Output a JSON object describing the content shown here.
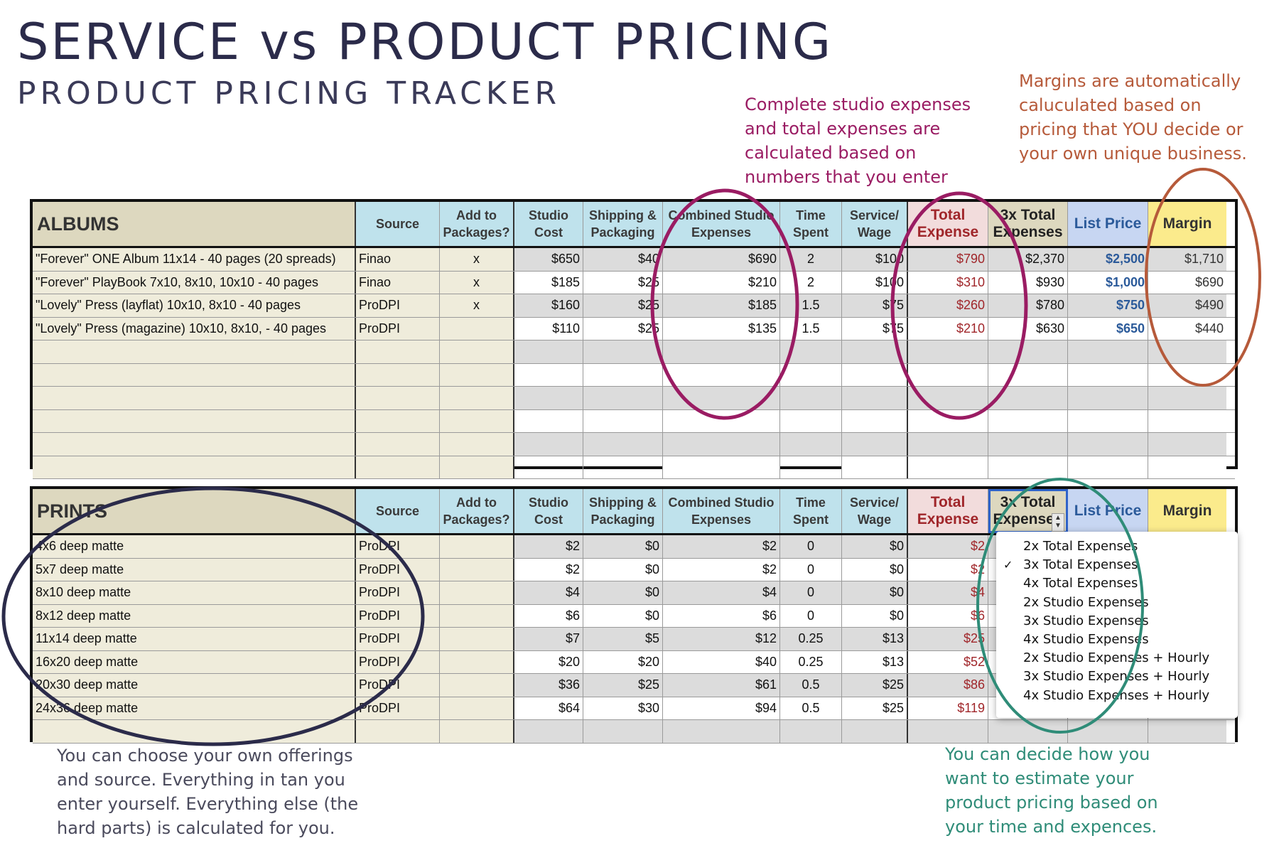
{
  "title": "SERVICE vs PRODUCT PRICING",
  "subtitle": "PRODUCT PRICING TRACKER",
  "notes": {
    "studio": [
      "Complete studio expenses",
      "and total expenses are",
      "calculated based on",
      "numbers that you enter"
    ],
    "margin": [
      "Margins are automatically",
      "caluculated based on",
      "pricing that YOU decide or",
      "your own unique business."
    ],
    "tan": [
      "You can choose your own offerings",
      "and source. Everything in tan you",
      "enter yourself. Everything else (the",
      "hard parts) is calculated for you."
    ],
    "estimate": [
      "You can decide how you",
      "want to estimate your",
      "product pricing based on",
      "your time and expences."
    ]
  },
  "headers": {
    "source": "Source",
    "add": "Add to Packages?",
    "studio": "Studio Cost",
    "shipping": "Shipping & Packaging",
    "combined": "Combined Studio Expenses",
    "time": "Time Spent",
    "wage": "Service/ Wage",
    "total": "Total Expense",
    "three_x": "3x Total Expenses",
    "list": "List Price",
    "margin": "Margin"
  },
  "albums": {
    "title": "ALBUMS",
    "rows": [
      {
        "item": "\"Forever\" ONE Album 11x14 - 40 pages (20 spreads)",
        "source": "Finao",
        "add": "x",
        "studio": "$650",
        "shipping": "$40",
        "combined": "$690",
        "time": "2",
        "wage": "$100",
        "total": "$790",
        "three_x": "$2,370",
        "list": "$2,500",
        "margin": "$1,710"
      },
      {
        "item": "\"Forever\" PlayBook 7x10, 8x10, 10x10 - 40 pages",
        "source": "Finao",
        "add": "x",
        "studio": "$185",
        "shipping": "$25",
        "combined": "$210",
        "time": "2",
        "wage": "$100",
        "total": "$310",
        "three_x": "$930",
        "list": "$1,000",
        "margin": "$690"
      },
      {
        "item": "\"Lovely\" Press (layflat) 10x10, 8x10 - 40 pages",
        "source": "ProDPI",
        "add": "x",
        "studio": "$160",
        "shipping": "$25",
        "combined": "$185",
        "time": "1.5",
        "wage": "$75",
        "total": "$260",
        "three_x": "$780",
        "list": "$750",
        "margin": "$490"
      },
      {
        "item": "\"Lovely\" Press (magazine) 10x10, 8x10, - 40 pages",
        "source": "ProDPI",
        "add": "",
        "studio": "$110",
        "shipping": "$25",
        "combined": "$135",
        "time": "1.5",
        "wage": "$75",
        "total": "$210",
        "three_x": "$630",
        "list": "$650",
        "margin": "$440"
      }
    ]
  },
  "prints": {
    "title": "PRINTS",
    "rows": [
      {
        "item": "4x6 deep matte",
        "source": "ProDPI",
        "studio": "$2",
        "shipping": "$0",
        "combined": "$2",
        "time": "0",
        "wage": "$0",
        "total": "$2"
      },
      {
        "item": "5x7 deep matte",
        "source": "ProDPI",
        "studio": "$2",
        "shipping": "$0",
        "combined": "$2",
        "time": "0",
        "wage": "$0",
        "total": "$2"
      },
      {
        "item": "8x10  deep matte",
        "source": "ProDPI",
        "studio": "$4",
        "shipping": "$0",
        "combined": "$4",
        "time": "0",
        "wage": "$0",
        "total": "$4"
      },
      {
        "item": "8x12 deep matte",
        "source": "ProDPI",
        "studio": "$6",
        "shipping": "$0",
        "combined": "$6",
        "time": "0",
        "wage": "$0",
        "total": "$6"
      },
      {
        "item": "11x14 deep matte",
        "source": "ProDPI",
        "studio": "$7",
        "shipping": "$5",
        "combined": "$12",
        "time": "0.25",
        "wage": "$13",
        "total": "$25"
      },
      {
        "item": "16x20 deep matte",
        "source": "ProDPI",
        "studio": "$20",
        "shipping": "$20",
        "combined": "$40",
        "time": "0.25",
        "wage": "$13",
        "total": "$52"
      },
      {
        "item": "20x30 deep matte",
        "source": "ProDPI",
        "studio": "$36",
        "shipping": "$25",
        "combined": "$61",
        "time": "0.5",
        "wage": "$25",
        "total": "$86"
      },
      {
        "item": "24x36 deep matte",
        "source": "ProDPI",
        "studio": "$64",
        "shipping": "$30",
        "combined": "$94",
        "time": "0.5",
        "wage": "$25",
        "total": "$119"
      }
    ]
  },
  "dropdown": {
    "selected": "3x Total Expenses",
    "options": [
      "2x Total Expenses",
      "3x Total Expenses",
      "4x Total Expenses",
      "2x Studio Expenses",
      "3x Studio Expenses",
      "4x Studio Expenses",
      "2x Studio Expenses + Hourly",
      "3x Studio Expenses + Hourly",
      "4x Studio Expenses + Hourly"
    ]
  },
  "colors": {
    "studio_note": "#9a1c63",
    "margin_note": "#b65a3a",
    "tan_note": "#2b2b4a",
    "estimate_note": "#2f8c78"
  }
}
